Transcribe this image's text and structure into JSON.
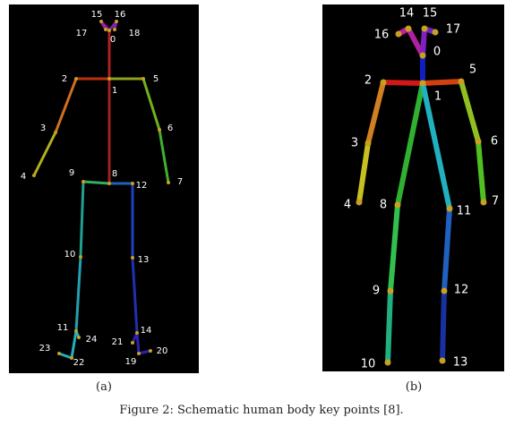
{
  "panels": [
    {
      "caption": "(a)",
      "nodes": [
        {
          "label": "0"
        },
        {
          "label": "1"
        },
        {
          "label": "2"
        },
        {
          "label": "3"
        },
        {
          "label": "4"
        },
        {
          "label": "5"
        },
        {
          "label": "6"
        },
        {
          "label": "7"
        },
        {
          "label": "8"
        },
        {
          "label": "9"
        },
        {
          "label": "10"
        },
        {
          "label": "11"
        },
        {
          "label": "12"
        },
        {
          "label": "13"
        },
        {
          "label": "14"
        },
        {
          "label": "15"
        },
        {
          "label": "16"
        },
        {
          "label": "17"
        },
        {
          "label": "18"
        },
        {
          "label": "19"
        },
        {
          "label": "20"
        },
        {
          "label": "21"
        },
        {
          "label": "22"
        },
        {
          "label": "23"
        },
        {
          "label": "24"
        }
      ]
    },
    {
      "caption": "(b)",
      "nodes": [
        {
          "label": "0"
        },
        {
          "label": "1"
        },
        {
          "label": "2"
        },
        {
          "label": "3"
        },
        {
          "label": "4"
        },
        {
          "label": "5"
        },
        {
          "label": "6"
        },
        {
          "label": "7"
        },
        {
          "label": "8"
        },
        {
          "label": "9"
        },
        {
          "label": "10"
        },
        {
          "label": "11"
        },
        {
          "label": "12"
        },
        {
          "label": "13"
        },
        {
          "label": "14"
        },
        {
          "label": "15"
        },
        {
          "label": "16"
        },
        {
          "label": "17"
        }
      ]
    }
  ],
  "caption": "Figure 2: Schematic human body key points [8]."
}
